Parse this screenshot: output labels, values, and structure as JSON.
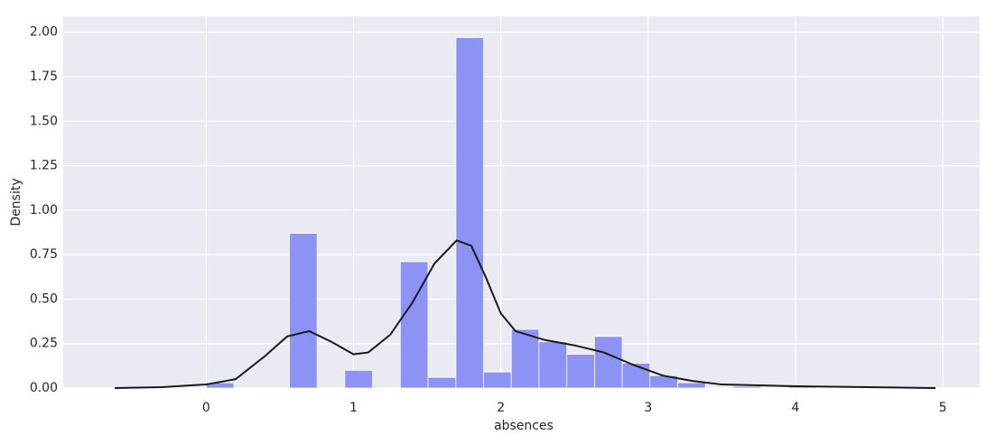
{
  "chart_data": {
    "type": "histogram",
    "x_label": "absences",
    "y_label": "Density",
    "bins": [
      0,
      0.188,
      0.377,
      0.565,
      0.753,
      0.941,
      1.13,
      1.318,
      1.506,
      1.695,
      1.883,
      2.071,
      2.259,
      2.448,
      2.636,
      2.824,
      3.012,
      3.201,
      3.389,
      3.577,
      3.766,
      3.954,
      4.142,
      4.331
    ],
    "values": [
      0.03,
      0,
      0,
      0.87,
      0,
      0.1,
      0,
      0.71,
      0.06,
      1.97,
      0.09,
      0.33,
      0.26,
      0.19,
      0.29,
      0.14,
      0.07,
      0.03,
      0,
      0.01,
      0,
      0.01,
      0
    ],
    "color": "#8d93f5",
    "kde": {
      "color": "#1a1a1a",
      "x": [
        -0.62,
        -0.3,
        0,
        0.2,
        0.4,
        0.55,
        0.7,
        0.85,
        1.0,
        1.1,
        1.25,
        1.4,
        1.55,
        1.7,
        1.8,
        1.9,
        2.0,
        2.1,
        2.3,
        2.5,
        2.7,
        2.9,
        3.1,
        3.3,
        3.5,
        4.0,
        4.5,
        4.95
      ],
      "values": [
        0,
        0.005,
        0.02,
        0.05,
        0.18,
        0.29,
        0.32,
        0.26,
        0.19,
        0.2,
        0.3,
        0.48,
        0.7,
        0.83,
        0.8,
        0.62,
        0.42,
        0.32,
        0.27,
        0.24,
        0.2,
        0.13,
        0.07,
        0.04,
        0.02,
        0.01,
        0.005,
        0
      ]
    },
    "xlim": [
      -0.97,
      5.25
    ],
    "ylim": [
      0,
      2.09
    ],
    "xticks": [
      0,
      1,
      2,
      3,
      4,
      5
    ],
    "yticks": [
      {
        "value": 0,
        "label": "0.00"
      },
      {
        "value": 0.25,
        "label": "0.25"
      },
      {
        "value": 0.5,
        "label": "0.50"
      },
      {
        "value": 0.75,
        "label": "0.75"
      },
      {
        "value": 1,
        "label": "1.00"
      },
      {
        "value": 1.25,
        "label": "1.25"
      },
      {
        "value": 1.5,
        "label": "1.50"
      },
      {
        "value": 1.75,
        "label": "1.75"
      },
      {
        "value": 2,
        "label": "2.00"
      }
    ],
    "grid": true
  }
}
